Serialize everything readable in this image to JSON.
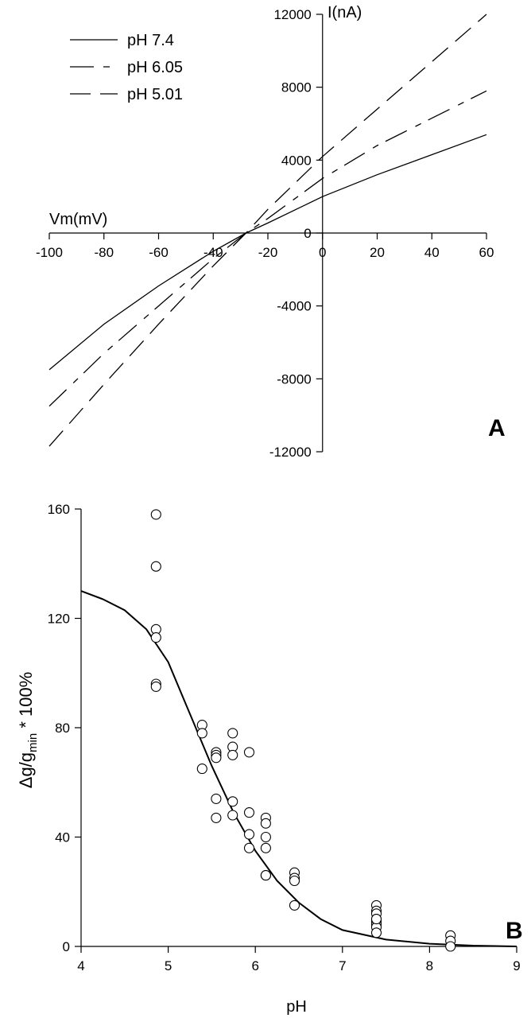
{
  "chart_data": [
    {
      "panel": "A",
      "type": "line",
      "xlabel": "Vm(mV)",
      "ylabel": "I(nA)",
      "xlim": [
        -100,
        60
      ],
      "ylim": [
        -12000,
        12000
      ],
      "x_ticks": [
        -100,
        -80,
        -60,
        -40,
        -20,
        0,
        20,
        40,
        60
      ],
      "y_ticks": [
        -12000,
        -8000,
        -4000,
        0,
        4000,
        8000,
        12000
      ],
      "legend_position": "top-left",
      "series": [
        {
          "name": "pH 7.4",
          "dash": "solid",
          "x": [
            -100,
            -80,
            -60,
            -40,
            -28,
            -20,
            0,
            20,
            40,
            60
          ],
          "y": [
            -7500,
            -5000,
            -2900,
            -1000,
            0,
            550,
            2000,
            3200,
            4300,
            5400
          ]
        },
        {
          "name": "pH 6.05",
          "dash": "short-dash",
          "x": [
            -100,
            -80,
            -60,
            -40,
            -28,
            -20,
            0,
            20,
            40,
            60
          ],
          "y": [
            -9500,
            -6600,
            -4000,
            -1400,
            0,
            800,
            3000,
            4800,
            6300,
            7800
          ]
        },
        {
          "name": "pH 5.01",
          "dash": "long-dash",
          "x": [
            -100,
            -80,
            -60,
            -40,
            -28,
            -20,
            0,
            20,
            40,
            60
          ],
          "y": [
            -11700,
            -8300,
            -5000,
            -1800,
            0,
            1300,
            4200,
            6800,
            9400,
            12000
          ]
        }
      ]
    },
    {
      "panel": "B",
      "type": "scatter",
      "xlabel": "pH",
      "ylabel_main": "Δg/g",
      "ylabel_sub": "min",
      "ylabel_suffix": " * 100%",
      "xlim": [
        4,
        9
      ],
      "ylim": [
        0,
        160
      ],
      "x_ticks": [
        4,
        5,
        6,
        7,
        8,
        9
      ],
      "y_ticks": [
        0,
        40,
        80,
        120,
        160
      ],
      "points": {
        "x": [
          4.86,
          4.86,
          4.86,
          4.86,
          4.86,
          4.86,
          5.39,
          5.39,
          5.39,
          5.55,
          5.55,
          5.55,
          5.55,
          5.55,
          5.74,
          5.74,
          5.74,
          5.74,
          5.74,
          5.93,
          5.93,
          5.93,
          5.93,
          6.12,
          6.12,
          6.12,
          6.12,
          6.12,
          6.12,
          6.45,
          6.45,
          6.45,
          6.45,
          7.39,
          7.39,
          7.39,
          7.39,
          7.39,
          7.39,
          7.39,
          7.39,
          7.39,
          8.24,
          8.24,
          8.24
        ],
        "y": [
          158,
          139,
          116,
          113,
          96,
          95,
          81,
          78,
          65,
          71,
          70,
          69,
          54,
          47,
          78,
          73,
          70,
          53,
          48,
          71,
          49,
          41,
          36,
          47,
          45,
          40,
          36,
          26,
          26,
          27,
          25,
          24,
          15,
          15,
          13,
          12,
          10,
          9,
          8,
          7,
          5,
          10,
          4,
          2,
          0
        ]
      },
      "fit_curve": {
        "x": [
          4.0,
          4.25,
          4.5,
          4.75,
          5.0,
          5.25,
          5.5,
          5.75,
          6.0,
          6.25,
          6.5,
          6.75,
          7.0,
          7.5,
          8.0,
          8.5,
          9.0
        ],
        "y": [
          130,
          127,
          123,
          116,
          104,
          85,
          66,
          49,
          35,
          24,
          16,
          10,
          6,
          2.5,
          1,
          0.3,
          0
        ]
      }
    }
  ],
  "panel_labels": {
    "a": "A",
    "b": "B"
  }
}
